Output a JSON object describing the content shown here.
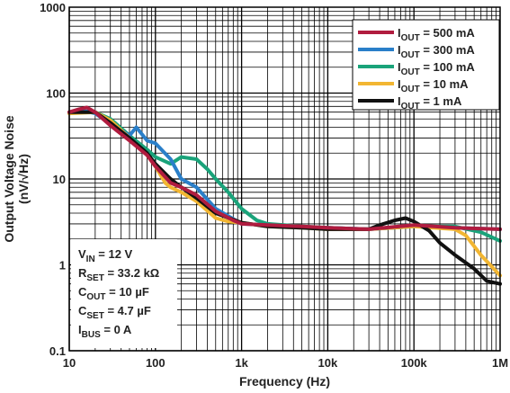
{
  "chart_data": {
    "type": "line",
    "title": "",
    "xlabel": "Frequency (Hz)",
    "ylabel": "Output Voltage Noise",
    "ylabel_unit": "(nV/√Hz)",
    "xscale": "log",
    "yscale": "log",
    "xlim": [
      10,
      1000000
    ],
    "ylim": [
      0.1,
      1000
    ],
    "x_tick_labels": [
      "10",
      "100",
      "1k",
      "10k",
      "100k",
      "1M"
    ],
    "y_tick_labels": [
      "0.1",
      "1",
      "10",
      "100",
      "1000"
    ],
    "grid": true,
    "legend_position": "top-right",
    "legend": [
      {
        "main": "I",
        "sub": "OUT",
        "rest": " = 500 mA"
      },
      {
        "main": "I",
        "sub": "OUT",
        "rest": " = 300 mA"
      },
      {
        "main": "I",
        "sub": "OUT",
        "rest": " = 100 mA"
      },
      {
        "main": "I",
        "sub": "OUT",
        "rest": " = 10 mA"
      },
      {
        "main": "I",
        "sub": "OUT",
        "rest": " = 1 mA"
      }
    ],
    "conditions": [
      {
        "main": "V",
        "sub": "IN",
        "rest": " = 12 V"
      },
      {
        "main": "R",
        "sub": "SET",
        "rest": " = 33.2 kΩ"
      },
      {
        "main": "C",
        "sub": "OUT",
        "rest": " = 10 µF"
      },
      {
        "main": "C",
        "sub": "SET",
        "rest": " = 4.7 µF"
      },
      {
        "main": "I",
        "sub": "BUS",
        "rest": " = 0 A"
      }
    ],
    "series": [
      {
        "color": "#b01c3f",
        "x": [
          10,
          13,
          16,
          20,
          30,
          50,
          80,
          100,
          150,
          200,
          300,
          500,
          800,
          1000,
          2000,
          5000,
          10000,
          30000,
          100000,
          300000,
          1000000
        ],
        "y": [
          60,
          65,
          68,
          60,
          42,
          28,
          19,
          14,
          9,
          8,
          6.5,
          4.2,
          3.3,
          3.0,
          2.9,
          2.8,
          2.7,
          2.6,
          2.9,
          2.7,
          2.6
        ]
      },
      {
        "color": "#2a7fc9",
        "x": [
          10,
          15,
          20,
          30,
          50,
          60,
          80,
          100,
          150,
          200,
          300,
          500,
          1000,
          2000,
          5000,
          10000,
          30000,
          100000,
          300000,
          1000000
        ],
        "y": [
          58,
          62,
          58,
          44,
          32,
          40,
          28,
          26,
          17,
          10,
          8,
          4.5,
          3.0,
          2.9,
          2.7,
          2.7,
          2.6,
          2.8,
          2.7,
          2.6
        ]
      },
      {
        "color": "#1aa37a",
        "x": [
          10,
          20,
          30,
          50,
          80,
          100,
          150,
          200,
          300,
          400,
          500,
          700,
          1000,
          1500,
          2000,
          5000,
          10000,
          30000,
          100000,
          300000,
          600000,
          1000000
        ],
        "y": [
          60,
          60,
          50,
          32,
          22,
          18,
          15,
          18,
          17,
          13,
          10,
          7,
          4.5,
          3.3,
          3.0,
          2.8,
          2.7,
          2.6,
          2.8,
          2.8,
          2.4,
          1.9
        ]
      },
      {
        "color": "#f2b632",
        "x": [
          10,
          20,
          30,
          50,
          80,
          100,
          130,
          150,
          200,
          300,
          500,
          700,
          1000,
          2000,
          5000,
          10000,
          30000,
          100000,
          300000,
          400000,
          600000,
          1000000
        ],
        "y": [
          58,
          60,
          48,
          30,
          19,
          14,
          9,
          8,
          7,
          5.5,
          3.5,
          3.2,
          3.1,
          2.8,
          2.7,
          2.6,
          2.6,
          2.8,
          2.6,
          2.2,
          1.3,
          0.75
        ]
      },
      {
        "color": "#111111",
        "x": [
          10,
          20,
          30,
          50,
          80,
          100,
          150,
          200,
          300,
          500,
          1000,
          2000,
          5000,
          10000,
          30000,
          40000,
          60000,
          80000,
          100000,
          150000,
          200000,
          300000,
          500000,
          700000,
          1000000
        ],
        "y": [
          60,
          60,
          45,
          30,
          20,
          15,
          10,
          8,
          6,
          4,
          3.1,
          2.8,
          2.7,
          2.6,
          2.6,
          2.9,
          3.3,
          3.5,
          3.2,
          2.5,
          1.8,
          1.3,
          0.9,
          0.65,
          0.6
        ]
      }
    ]
  }
}
